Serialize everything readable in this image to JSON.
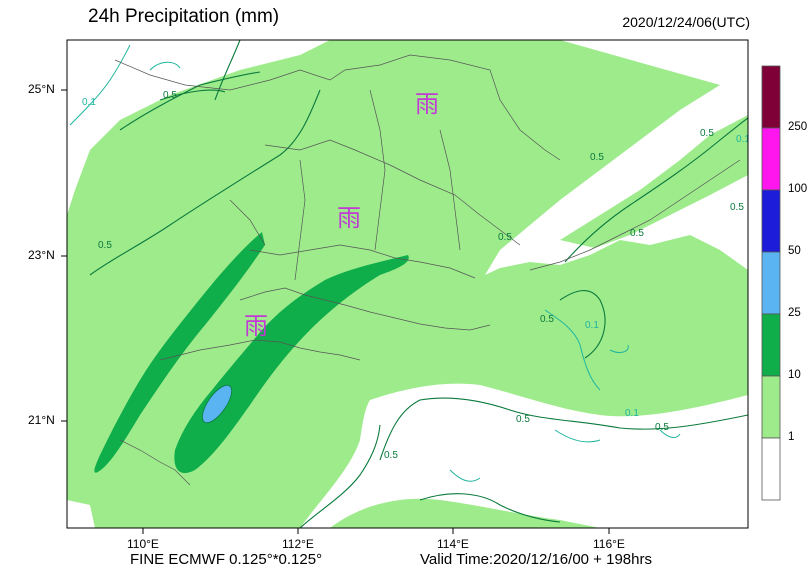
{
  "title": "24h Precipitation (mm)",
  "init_time": "2020/12/24/06(UTC)",
  "model_label": "FINE ECMWF 0.125°*0.125°",
  "valid_label": "Valid Time:2020/12/16/00 + 198hrs",
  "lat_ticks": [
    {
      "label": "25°N",
      "lat": 25
    },
    {
      "label": "23°N",
      "lat": 23
    },
    {
      "label": "21°N",
      "lat": 21
    }
  ],
  "lon_ticks": [
    {
      "label": "110°E",
      "lon": 110
    },
    {
      "label": "112°E",
      "lon": 112
    },
    {
      "label": "114°E",
      "lon": 114
    },
    {
      "label": "116°E",
      "lon": 116
    }
  ],
  "legend": [
    {
      "label": "250",
      "color": "#7f0037"
    },
    {
      "label": "100",
      "color": "#ff16ee"
    },
    {
      "label": "50",
      "color": "#1c1cd9"
    },
    {
      "label": "25",
      "color": "#5ab4f2"
    },
    {
      "label": "10",
      "color": "#0fae4a"
    },
    {
      "label": "1",
      "color": "#9eeb8c"
    },
    {
      "label": "",
      "color": "#ffffff"
    }
  ],
  "map_colors": {
    "light_rain": "#9eeb8c",
    "moderate_rain": "#0fae4a",
    "heavy_rain": "#5ab4f2",
    "no_rain": "#ffffff",
    "contour_dark": "#0a7a3c",
    "contour_teal": "#1fb5a0"
  },
  "rain_markers": [
    "雨",
    "雨",
    "雨"
  ],
  "contour_labels": [
    "0.1",
    "0.5",
    "0.5",
    "0.5",
    "0.5",
    "0.1",
    "0.5",
    "0.5",
    "0.5",
    "0.1",
    "0.5",
    "0.5",
    "0.1",
    "0.5",
    "0.5"
  ]
}
